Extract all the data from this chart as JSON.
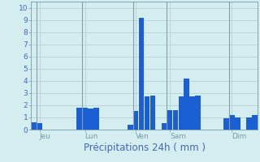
{
  "values": [
    0.6,
    0.5,
    0,
    0,
    0,
    0,
    0,
    0,
    1.8,
    1.8,
    1.7,
    1.8,
    0,
    0,
    0,
    0,
    0,
    0.4,
    1.5,
    9.2,
    2.7,
    2.8,
    0,
    0.5,
    1.6,
    1.6,
    2.7,
    4.2,
    2.7,
    2.8,
    0,
    0,
    0,
    0,
    0.9,
    1.2,
    1.0,
    0,
    1.0,
    1.2
  ],
  "bar_color": "#1a5fd4",
  "background_color": "#d4eef0",
  "grid_color": "#b0ccd0",
  "axis_color": "#7799aa",
  "text_color": "#4466bb",
  "title": "Précipitations 24h ( mm )",
  "ylabel_vals": [
    0,
    1,
    2,
    3,
    4,
    5,
    6,
    7,
    8,
    9,
    10
  ],
  "ylim": [
    0,
    10.5
  ],
  "tick_labels_x": [
    "Jeu",
    "Lun",
    "Ven",
    "Sam",
    "Dim"
  ],
  "tick_positions_x": [
    1,
    9,
    18,
    24,
    35
  ],
  "vline_positions": [
    0.5,
    8.5,
    17.5,
    23.5,
    34.5
  ],
  "xlabel_fontsize": 8.5,
  "tick_fontsize": 6.5
}
